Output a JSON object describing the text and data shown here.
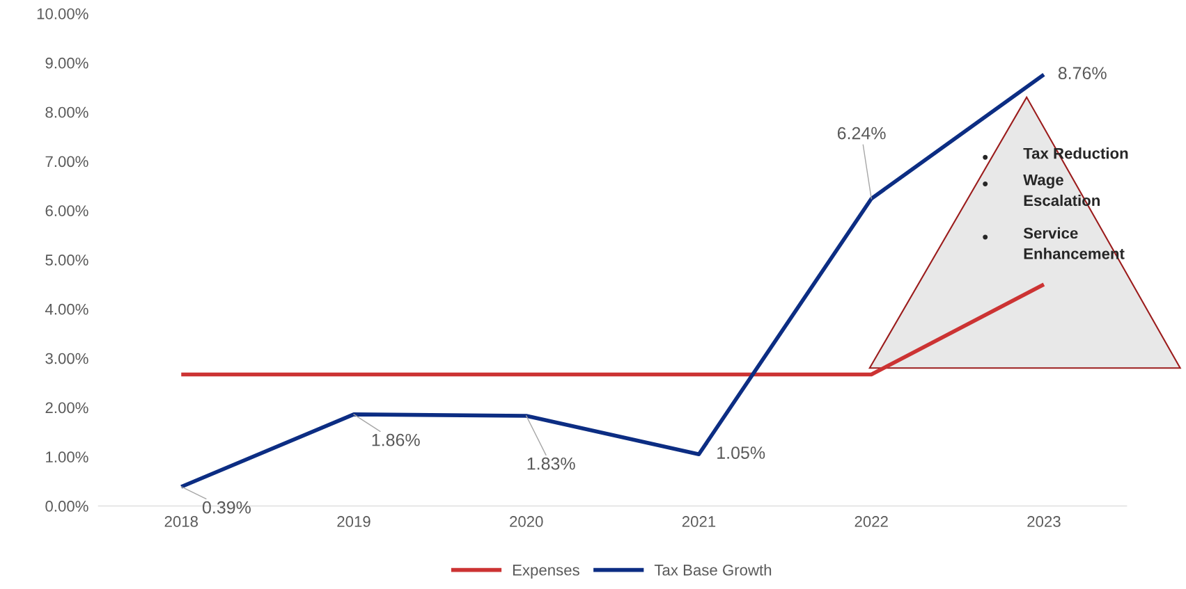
{
  "chart_data": {
    "type": "line",
    "categories": [
      "2018",
      "2019",
      "2020",
      "2021",
      "2022",
      "2023"
    ],
    "series": [
      {
        "name": "Expenses",
        "color": "#cc3333",
        "values": [
          2.67,
          2.67,
          2.67,
          2.67,
          2.67,
          4.5
        ]
      },
      {
        "name": "Tax Base Growth",
        "color": "#0c2d83",
        "values": [
          0.39,
          1.86,
          1.83,
          1.05,
          6.24,
          8.76
        ],
        "value_labels": [
          "0.39%",
          "1.86%",
          "1.83%",
          "1.05%",
          "6.24%",
          "8.76%"
        ]
      }
    ],
    "ylim": [
      0,
      10
    ],
    "yticks": [
      {
        "value": 0,
        "label": "0.00%"
      },
      {
        "value": 1,
        "label": "1.00%"
      },
      {
        "value": 2,
        "label": "2.00%"
      },
      {
        "value": 3,
        "label": "3.00%"
      },
      {
        "value": 4,
        "label": "4.00%"
      },
      {
        "value": 5,
        "label": "5.00%"
      },
      {
        "value": 6,
        "label": "6.00%"
      },
      {
        "value": 7,
        "label": "7.00%"
      },
      {
        "value": 8,
        "label": "8.00%"
      },
      {
        "value": 9,
        "label": "9.00%"
      },
      {
        "value": 10,
        "label": "10.00%"
      }
    ],
    "annotations": [
      "Tax Reduction",
      "Wage Escalation",
      "Service Enhancement"
    ],
    "grid": false,
    "legend": "bottom",
    "marker": "none",
    "line_style": "solid"
  }
}
